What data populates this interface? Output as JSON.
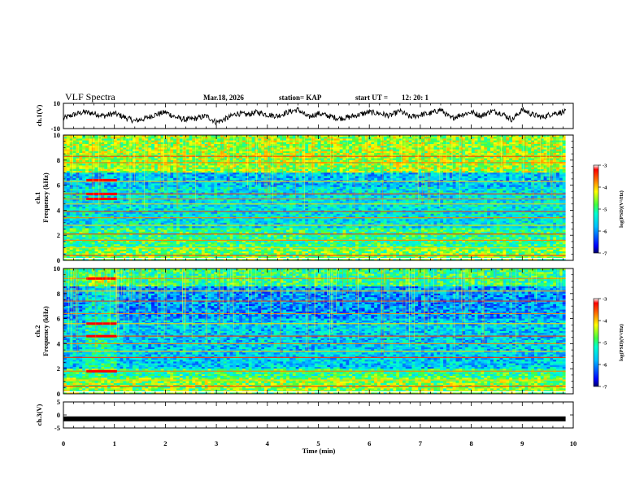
{
  "header": {
    "title": "VLF Spectra",
    "date": "Mar.18, 2026",
    "station": "station= KAP",
    "start_ut_label": "start  UT  =",
    "start_ut_value": "12: 20: 1"
  },
  "chart_data": [
    {
      "name": "ch1-waveform",
      "type": "line",
      "ylabel": "ch.1(V)",
      "ylim": [
        -10,
        10
      ],
      "yticks": [
        "10",
        "-10"
      ],
      "xlim": [
        0,
        9.85
      ],
      "samples_note": "noisy waveform, approx values in V",
      "x": [
        0.0,
        0.2,
        0.4,
        0.6,
        0.8,
        1.0,
        1.2,
        1.4,
        1.6,
        1.8,
        2.0,
        2.2,
        2.4,
        2.6,
        2.8,
        3.0,
        3.2,
        3.4,
        3.6,
        3.8,
        4.0,
        4.2,
        4.4,
        4.6,
        4.8,
        5.0,
        5.2,
        5.4,
        5.6,
        5.8,
        6.0,
        6.2,
        6.4,
        6.6,
        6.8,
        7.0,
        7.2,
        7.4,
        7.6,
        7.8,
        8.0,
        8.2,
        8.4,
        8.6,
        8.8,
        9.0,
        9.2,
        9.4,
        9.6,
        9.8
      ],
      "values": [
        -2,
        1,
        3,
        2,
        0,
        2,
        -1,
        -4,
        -2,
        1,
        3,
        -1,
        -3,
        -2,
        0,
        -5,
        -2,
        2,
        1,
        3,
        1,
        0,
        3,
        5,
        -1,
        2,
        0,
        -2,
        -1,
        1,
        3,
        2,
        0,
        4,
        -1,
        1,
        2,
        5,
        -2,
        1,
        3,
        0,
        4,
        2,
        -3,
        5,
        1,
        -1,
        2,
        3
      ]
    },
    {
      "name": "ch1-spectrogram",
      "type": "heatmap",
      "ylabel": "ch.1\nFrequency (kHz)",
      "ylim": [
        0,
        10
      ],
      "yticks": [
        "0",
        "2",
        "4",
        "6",
        "8",
        "10"
      ],
      "xlim": [
        0,
        9.85
      ],
      "colorbar": {
        "label": "log(PSD)(V²/Hz)",
        "range": [
          -7,
          -3
        ],
        "ticks": [
          "-3",
          "-4",
          "-5",
          "-6",
          "-7"
        ]
      },
      "horizontal_lines_khz": [
        0.4,
        1.0,
        1.6,
        2.1,
        2.8,
        3.4,
        3.9,
        4.5,
        4.9,
        5.3,
        6.3,
        7.8,
        8.3
      ],
      "burst_interval_min": [
        0.45,
        1.05
      ]
    },
    {
      "name": "ch2-spectrogram",
      "type": "heatmap",
      "ylabel": "ch.2\nFrequency (kHz)",
      "ylim": [
        0,
        10
      ],
      "yticks": [
        "0",
        "2",
        "4",
        "6",
        "8",
        "10"
      ],
      "xlim": [
        0,
        9.85
      ],
      "colorbar": {
        "label": "log(PSD)(V²/Hz)",
        "range": [
          -7,
          -3
        ],
        "ticks": [
          "-3",
          "-4",
          "-5",
          "-6",
          "-7"
        ]
      },
      "horizontal_lines_khz": [
        0.6,
        1.1,
        1.8,
        2.9,
        3.4,
        4.0,
        4.6,
        5.6,
        6.4,
        7.4,
        8.2,
        9.2
      ],
      "burst_interval_min": [
        0.45,
        1.05
      ]
    },
    {
      "name": "ch3-waveform",
      "type": "line",
      "ylabel": "ch.3(V)",
      "ylim": [
        -5,
        5
      ],
      "yticks": [
        "5",
        "0",
        "-5"
      ],
      "xlim": [
        0,
        9.85
      ],
      "x": [
        0,
        9.85
      ],
      "values": [
        -1.5,
        -1.5
      ]
    }
  ],
  "xaxis": {
    "label": "Time  (min)",
    "range": [
      0,
      10
    ],
    "ticks": [
      "0",
      "1",
      "2",
      "3",
      "4",
      "5",
      "6",
      "7",
      "8",
      "9",
      "10"
    ]
  },
  "colors": {
    "line": "#000000",
    "colormap": [
      "#00008f",
      "#0000ff",
      "#00a0ff",
      "#00ffff",
      "#40ff80",
      "#b0ff30",
      "#ffff00",
      "#ff8000",
      "#ff0000",
      "#ffffff"
    ]
  }
}
